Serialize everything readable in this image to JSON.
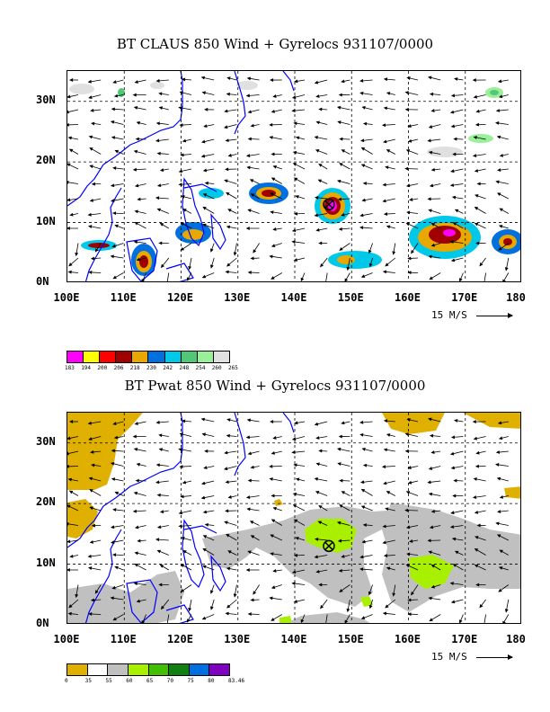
{
  "panels": [
    {
      "title": "BT CLAUS 850 Wind + Gyrelocs 931107/0000",
      "y_ticks": [
        "30N",
        "20N",
        "10N",
        "0N"
      ],
      "x_ticks": [
        "100E",
        "110E",
        "120E",
        "130E",
        "140E",
        "150E",
        "160E",
        "170E",
        "180"
      ],
      "scale_label": "15 M/S",
      "colorbar": {
        "colors": [
          "#ff00ff",
          "#ffff00",
          "#ff0000",
          "#a00000",
          "#e8a800",
          "#0070e0",
          "#00c8e8",
          "#50c878",
          "#98f098",
          "#e0e0e0"
        ],
        "labels": [
          "183",
          "194",
          "200",
          "206",
          "218",
          "230",
          "242",
          "248",
          "254",
          "260",
          "265"
        ]
      }
    },
    {
      "title": "BT Pwat 850 Wind + Gyrelocs 931107/0000",
      "y_ticks": [
        "30N",
        "20N",
        "10N",
        "0N"
      ],
      "x_ticks": [
        "100E",
        "110E",
        "120E",
        "130E",
        "140E",
        "150E",
        "160E",
        "170E",
        "180"
      ],
      "scale_label": "15 M/S",
      "colorbar": {
        "colors": [
          "#e0b000",
          "#ffffff",
          "#c0c0c0",
          "#a8f000",
          "#40c000",
          "#108010",
          "#0070e0",
          "#8000c0"
        ],
        "labels": [
          "0",
          "35",
          "55",
          "60",
          "65",
          "70",
          "75",
          "80",
          "83.46"
        ]
      }
    }
  ],
  "map_extent": {
    "lon": [
      100,
      180
    ],
    "lat": [
      0,
      35
    ]
  },
  "gyre_location": {
    "lon": 146,
    "lat": 13
  }
}
